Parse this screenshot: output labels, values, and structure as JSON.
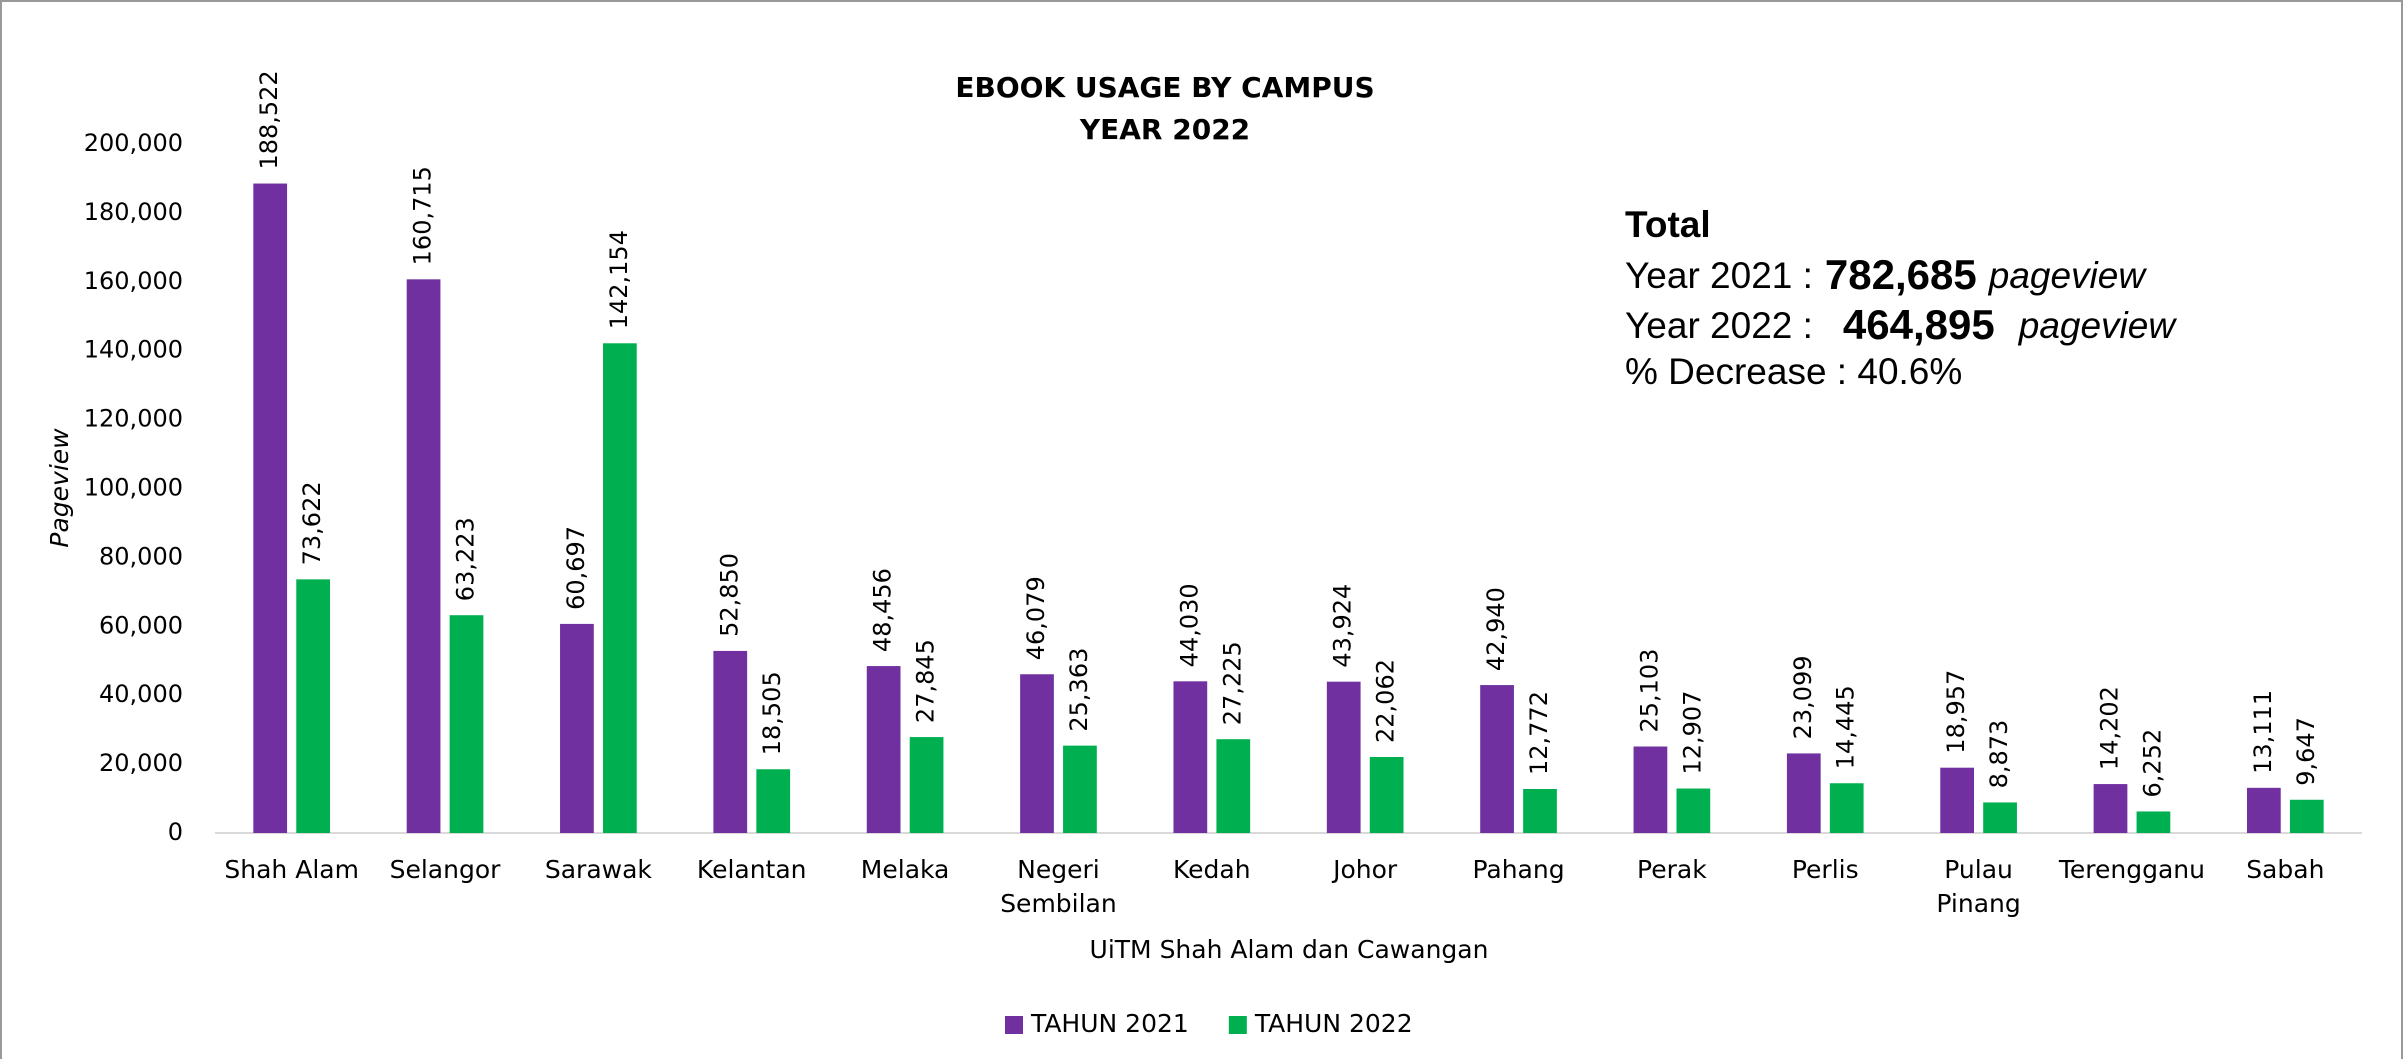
{
  "chart_data": {
    "type": "bar",
    "title": "EBOOK USAGE BY CAMPUS",
    "subtitle": "YEAR 2022",
    "x_label": "UiTM Shah Alam dan Cawangan",
    "y_label": "Pageview",
    "categories": [
      "Shah Alam",
      "Selangor",
      "Sarawak",
      "Kelantan",
      "Melaka",
      "Negeri Sembilan",
      "Kedah",
      "Johor",
      "Pahang",
      "Perak",
      "Perlis",
      "Pulau Pinang",
      "Terengganu",
      "Sabah"
    ],
    "series": [
      {
        "name": "TAHUN 2021",
        "color": "#7030a0",
        "values": [
          188522,
          160715,
          60697,
          52850,
          48456,
          46079,
          44030,
          43924,
          42940,
          25103,
          23099,
          18957,
          14202,
          13111
        ],
        "value_labels": [
          "188,522",
          "160,715",
          "60,697",
          "52,850",
          "48,456",
          "46,079",
          "44,030",
          "43,924",
          "42,940",
          "25,103",
          "23,099",
          "18,957",
          "14,202",
          "13,111"
        ]
      },
      {
        "name": "TAHUN 2022",
        "color": "#00b050",
        "values": [
          73622,
          63223,
          142154,
          18505,
          27845,
          25363,
          27225,
          22062,
          12772,
          12907,
          14445,
          8873,
          6252,
          9647
        ],
        "value_labels": [
          "73,622",
          "63,223",
          "142,154",
          "18,505",
          "27,845",
          "25,363",
          "27,225",
          "22,062",
          "12,772",
          "12,907",
          "14,445",
          "8,873",
          "6,252",
          "9,647"
        ]
      }
    ],
    "ylim": [
      0,
      200000
    ],
    "yticks": [
      0,
      {
        "value": 20000,
        "label": "20,000"
      },
      {
        "value": 40000,
        "label": "40,000"
      },
      {
        "value": 60000,
        "label": "60,000"
      },
      {
        "value": 80000,
        "label": "80,000"
      },
      {
        "value": 100000,
        "label": "100,000"
      },
      {
        "value": 120000,
        "label": "120,000"
      },
      {
        "value": 140000,
        "label": "140,000"
      },
      {
        "value": 160000,
        "label": "160,000"
      },
      {
        "value": 180000,
        "label": "180,000"
      },
      {
        "value": 200000,
        "label": "200,000"
      }
    ],
    "grid": false,
    "legend": "bottom",
    "annotation": {
      "title": "Total",
      "lines": [
        {
          "label": "Year 2021 :",
          "value": "782,685",
          "unit": "pageview"
        },
        {
          "label": "Year 2022 :",
          "value": "464,895",
          "unit": "pageview"
        }
      ],
      "decrease": "% Decrease : 40.6%"
    }
  }
}
